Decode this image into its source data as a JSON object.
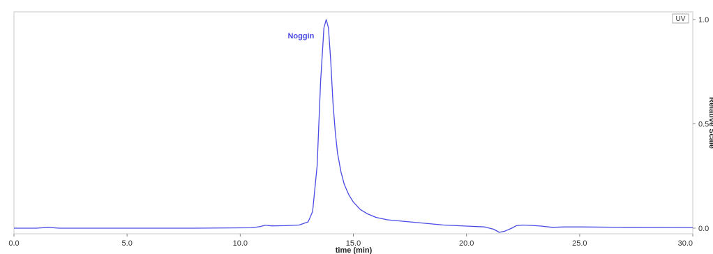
{
  "chart_data": {
    "type": "line",
    "xlabel": "time (min)",
    "ylabel": "Relative Scale",
    "xlim": [
      0,
      30
    ],
    "ylim": [
      0,
      1
    ],
    "x_ticks": [
      "0.0",
      "5.0",
      "10.0",
      "15.0",
      "20.0",
      "25.0",
      "30.0"
    ],
    "y_ticks": [
      "0.0",
      "0.5",
      "1.0"
    ],
    "grid": false,
    "line_color": "#4a4ae6",
    "series": [
      {
        "name": "UV",
        "x": [
          0,
          1.0,
          1.5,
          2.0,
          5.0,
          8.0,
          10.5,
          10.9,
          11.1,
          11.4,
          12.0,
          12.6,
          13.0,
          13.2,
          13.4,
          13.55,
          13.7,
          13.8,
          13.9,
          14.0,
          14.1,
          14.2,
          14.3,
          14.45,
          14.6,
          14.8,
          15.0,
          15.3,
          15.6,
          16.0,
          16.5,
          17.0,
          18.0,
          19.0,
          20.0,
          20.8,
          21.2,
          21.45,
          21.7,
          22.0,
          22.2,
          22.5,
          22.9,
          23.3,
          23.8,
          24.3,
          25.0,
          27.0,
          30.0
        ],
        "y": [
          0.0,
          0.0,
          0.004,
          0.0,
          0.0,
          0.0,
          0.002,
          0.008,
          0.014,
          0.011,
          0.012,
          0.015,
          0.03,
          0.08,
          0.3,
          0.7,
          0.96,
          1.0,
          0.96,
          0.8,
          0.6,
          0.46,
          0.36,
          0.27,
          0.21,
          0.16,
          0.125,
          0.09,
          0.07,
          0.052,
          0.04,
          0.035,
          0.025,
          0.015,
          0.01,
          0.006,
          -0.005,
          -0.02,
          -0.014,
          0.0,
          0.012,
          0.015,
          0.013,
          0.01,
          0.004,
          0.006,
          0.006,
          0.004,
          0.003
        ]
      }
    ],
    "annotations": [
      {
        "text": "Noggin",
        "x": 12.1,
        "y": 0.91
      }
    ]
  }
}
